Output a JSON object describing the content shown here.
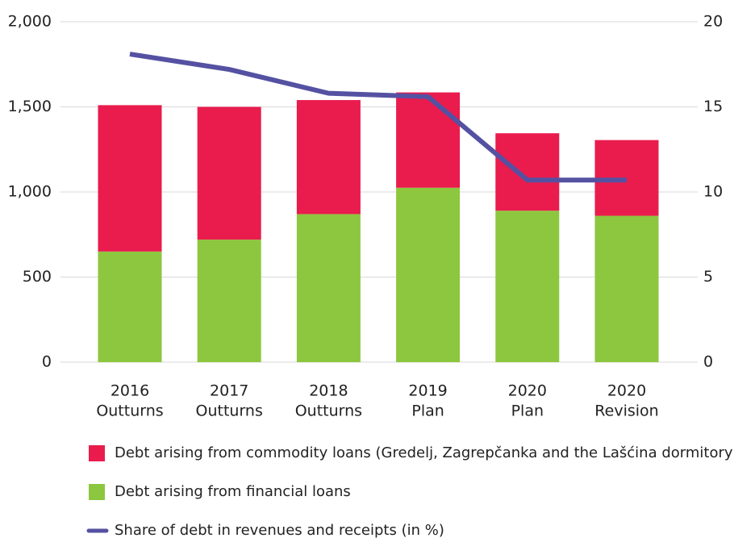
{
  "chart_data": {
    "type": "bar",
    "stacked": true,
    "categories": [
      [
        "2016",
        "Outturns"
      ],
      [
        "2017",
        "Outturns"
      ],
      [
        "2018",
        "Outturns"
      ],
      [
        "2019",
        "Plan"
      ],
      [
        "2020",
        "Plan"
      ],
      [
        "2020",
        "Revision"
      ]
    ],
    "series": [
      {
        "name": "Debt arising from financial loans",
        "color": "#8dc63f",
        "values": [
          650,
          720,
          870,
          1025,
          890,
          860
        ]
      },
      {
        "name": "Debt arising from commodity loans (Gredelj, Zagrepčanka and the Lašćina dormitory)",
        "color": "#e91c4d",
        "values": [
          860,
          780,
          670,
          560,
          455,
          445
        ]
      },
      {
        "name": "Share of debt in revenues and receipts (in %)",
        "color": "#5551a2",
        "type": "line",
        "axis": "y2",
        "values": [
          18.1,
          17.2,
          15.8,
          15.6,
          10.7,
          10.7
        ]
      }
    ],
    "ylim": [
      0,
      2000
    ],
    "yticks": [
      0,
      500,
      {
        "value": 1000,
        "label": "1,000"
      },
      {
        "value": 1500,
        "label": "1,500"
      },
      {
        "value": 2000,
        "label": "2,000"
      }
    ],
    "y2lim": [
      0,
      20
    ],
    "y2ticks": [
      0,
      5,
      10,
      15,
      20
    ],
    "grid": true,
    "legend": "bottom"
  }
}
